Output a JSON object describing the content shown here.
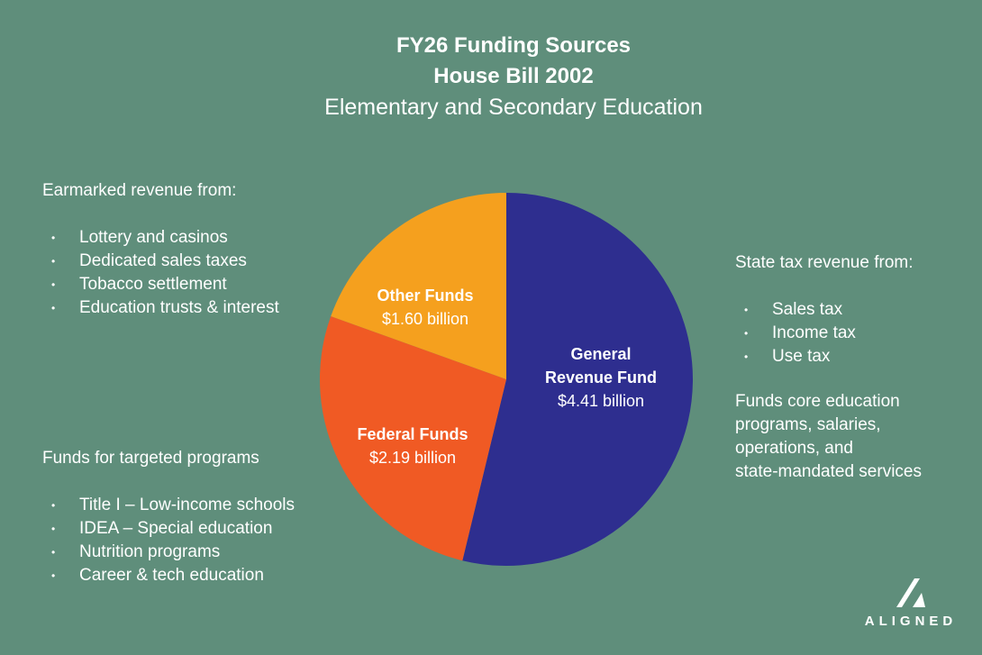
{
  "header": {
    "title_line1": "FY26 Funding Sources",
    "title_line2": "House Bill 2002",
    "subtitle": "Elementary and Secondary Education"
  },
  "left_top": {
    "heading": "Earmarked revenue from:",
    "items": [
      "Lottery and casinos",
      "Dedicated sales taxes",
      "Tobacco settlement",
      "Education trusts & interest"
    ]
  },
  "left_bottom": {
    "heading": "Funds for targeted programs",
    "items": [
      "Title I – Low-income schools",
      "IDEA – Special education",
      "Nutrition programs",
      "Career & tech education"
    ]
  },
  "right_top": {
    "heading": "State tax revenue from:",
    "items": [
      "Sales tax",
      "Income tax",
      "Use tax"
    ]
  },
  "right_note": {
    "lines": [
      "Funds core education",
      "programs, salaries,",
      "operations, and",
      "state-mandated services"
    ]
  },
  "bullet": "•",
  "logo": {
    "text": "ALIGNED",
    "icon": "aligned-logo-icon"
  },
  "colors": {
    "background": "#5f8e7b",
    "general": "#2e2e8f",
    "federal": "#f05a24",
    "other": "#f5a01e"
  },
  "chart_data": {
    "type": "pie",
    "title": "FY26 Funding Sources",
    "slices": [
      {
        "label_lines": [
          "General",
          "Revenue Fund"
        ],
        "value": 4.41,
        "value_label": "$4.41 billion",
        "color": "#2e2e8f"
      },
      {
        "label_lines": [
          "Federal Funds"
        ],
        "value": 2.19,
        "value_label": "$2.19 billion",
        "color": "#f05a24"
      },
      {
        "label_lines": [
          "Other Funds"
        ],
        "value": 1.6,
        "value_label": "$1.60 billion",
        "color": "#f5a01e"
      }
    ]
  }
}
